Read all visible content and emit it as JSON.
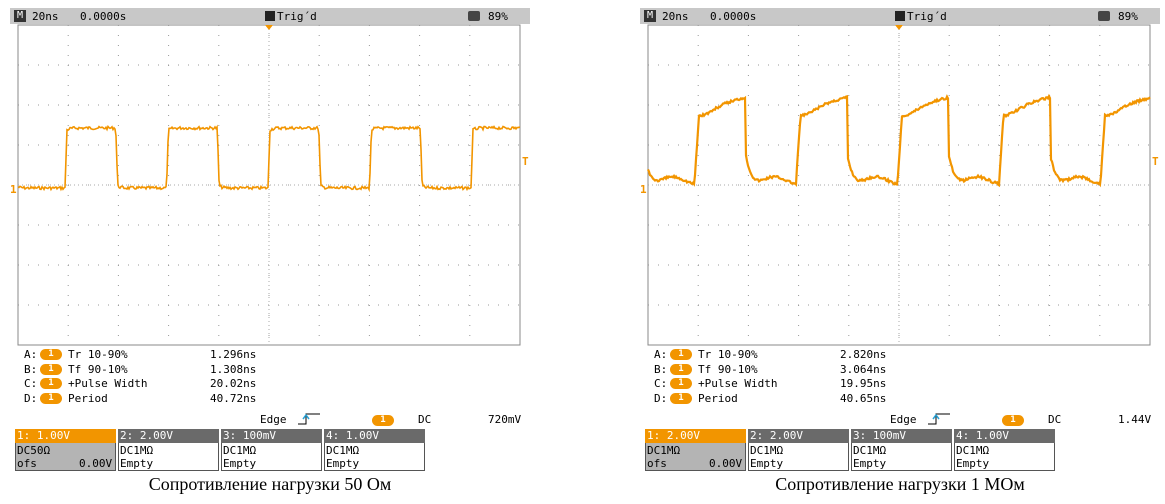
{
  "panels": [
    {
      "top": {
        "mode": "M",
        "timebase": "20ns",
        "position": "0.0000s",
        "trigger_status": "Trig´d",
        "battery": "89%"
      },
      "ch_marker": "1",
      "trig_marker": "T",
      "measurements": [
        {
          "slot": "A:",
          "source": "1",
          "name": "Tr 10-90%",
          "value": "1.296ns"
        },
        {
          "slot": "B:",
          "source": "1",
          "name": "Tf 90-10%",
          "value": "1.308ns"
        },
        {
          "slot": "C:",
          "source": "1",
          "name": "+Pulse Width",
          "value": "20.02ns"
        },
        {
          "slot": "D:",
          "source": "1",
          "name": "Period",
          "value": "40.72ns"
        }
      ],
      "trigger": {
        "type": "Edge",
        "source": "1",
        "coupling": "DC",
        "level": "720mV"
      },
      "channels": [
        {
          "label": "1: 1.00V",
          "coupling": "DC50Ω",
          "offset_label": "ofs",
          "offset": "0.00V"
        },
        {
          "label": "2: 2.00V",
          "coupling": "DC1MΩ",
          "offset": "Empty"
        },
        {
          "label": "3: 100mV",
          "coupling": "DC1MΩ",
          "offset": "Empty"
        },
        {
          "label": "4: 1.00V",
          "coupling": "DC1MΩ",
          "offset": "Empty"
        }
      ],
      "caption": "Сопротивление нагрузки 50 Ом"
    },
    {
      "top": {
        "mode": "M",
        "timebase": "20ns",
        "position": "0.0000s",
        "trigger_status": "Trig´d",
        "battery": "89%"
      },
      "ch_marker": "1",
      "trig_marker": "T",
      "measurements": [
        {
          "slot": "A:",
          "source": "1",
          "name": "Tr 10-90%",
          "value": "2.820ns"
        },
        {
          "slot": "B:",
          "source": "1",
          "name": "Tf 90-10%",
          "value": "3.064ns"
        },
        {
          "slot": "C:",
          "source": "1",
          "name": "+Pulse Width",
          "value": "19.95ns"
        },
        {
          "slot": "D:",
          "source": "1",
          "name": "Period",
          "value": "40.65ns"
        }
      ],
      "trigger": {
        "type": "Edge",
        "source": "1",
        "coupling": "DC",
        "level": "1.44V"
      },
      "channels": [
        {
          "label": "1: 2.00V",
          "coupling": "DC1MΩ",
          "offset_label": "ofs",
          "offset": "0.00V"
        },
        {
          "label": "2: 2.00V",
          "coupling": "DC1MΩ",
          "offset": "Empty"
        },
        {
          "label": "3: 100mV",
          "coupling": "DC1MΩ",
          "offset": "Empty"
        },
        {
          "label": "4: 1.00V",
          "coupling": "DC1MΩ",
          "offset": "Empty"
        }
      ],
      "caption": "Сопротивление нагрузки 1 МОм"
    }
  ]
}
